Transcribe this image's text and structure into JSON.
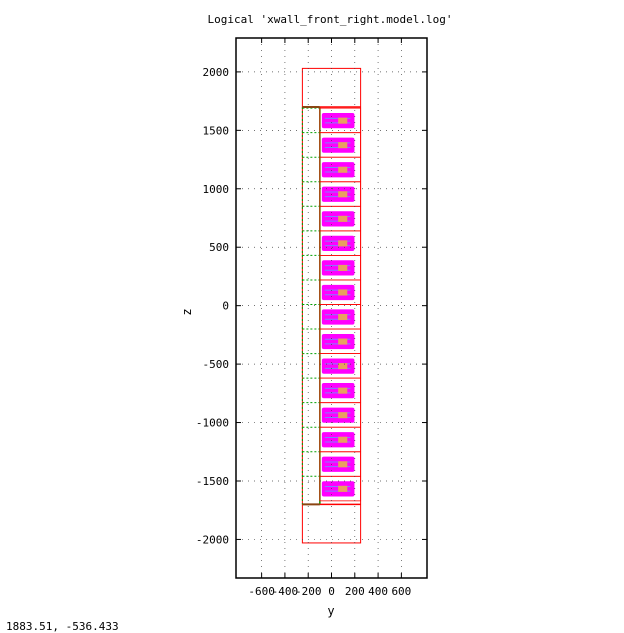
{
  "chart_data": {
    "type": "scatter",
    "title": "Logical 'xwall_front_right.model.log'",
    "xlabel": "y",
    "ylabel": "z",
    "xlim": [
      -820,
      820
    ],
    "ylim": [
      -2330,
      2290
    ],
    "x_ticks": [
      -600,
      -400,
      -200,
      0,
      200,
      400,
      600
    ],
    "x_tick_labels": [
      "-600",
      "-400",
      "-200",
      "0",
      "200",
      "400",
      "600"
    ],
    "y_ticks": [
      2000,
      1500,
      1000,
      500,
      0,
      -500,
      -1000,
      -1500,
      -2000
    ],
    "y_tick_labels": [
      "2000",
      "1500",
      "1000",
      "500",
      "0",
      "-500",
      "-1000",
      "-1500",
      "-2000"
    ],
    "grid": true,
    "colors": {
      "outer_box": "#ff0000",
      "module_outline": "#ff0000",
      "dashed_column": "#00a000",
      "support_bar": "#8b4513",
      "module_fill": "#ff00ff",
      "module_detail": "#e8a060",
      "module_inner": "#8080ff"
    },
    "outer_box": {
      "y": [
        -250,
        250
      ],
      "z": [
        -2030,
        2030
      ]
    },
    "column": {
      "y": [
        -250,
        -100
      ],
      "z": [
        -1700,
        1700
      ]
    },
    "support_bars": [
      {
        "y": [
          -250,
          -100
        ],
        "z": 1700
      },
      {
        "y": [
          -250,
          -100
        ],
        "z": -1700
      }
    ],
    "modules": {
      "y": [
        -100,
        250
      ],
      "z_centers": [
        1585,
        1375,
        1165,
        955,
        745,
        535,
        325,
        115,
        -95,
        -305,
        -515,
        -725,
        -935,
        -1145,
        -1355,
        -1565
      ],
      "height": 210
    }
  },
  "status": {
    "coordinates": "1883.51, -536.433"
  }
}
